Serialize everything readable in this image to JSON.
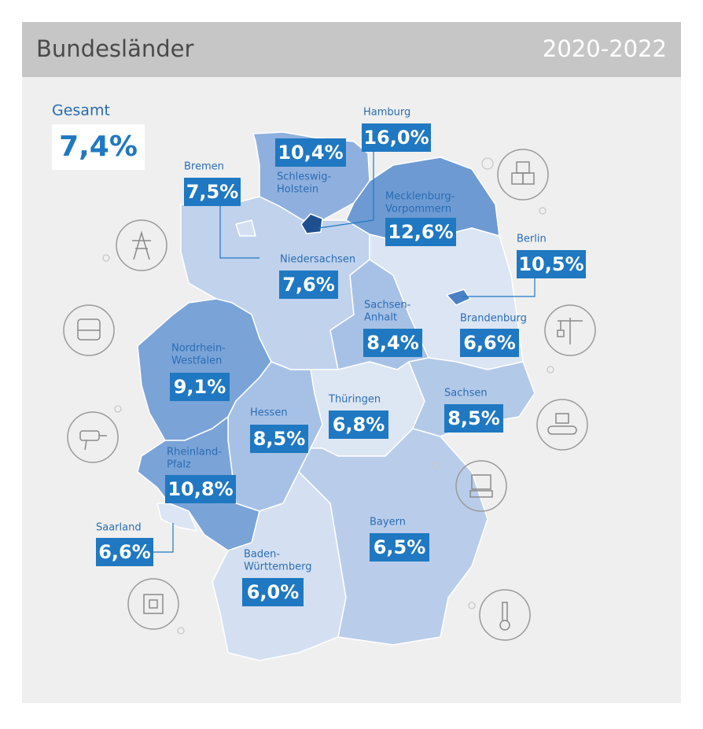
{
  "header": {
    "title": "Bundesländer",
    "period": "2020-2022"
  },
  "total": {
    "label": "Gesamt",
    "value": "7,4%"
  },
  "states": [
    {
      "name": [
        "Schleswig-",
        "Holstein"
      ],
      "value": "10,4%"
    },
    {
      "name": [
        "Hamburg"
      ],
      "value": "16,0%"
    },
    {
      "name": [
        "Bremen"
      ],
      "value": "7,5%"
    },
    {
      "name": [
        "Mecklenburg-",
        "Vorpommern"
      ],
      "value": "12,6%"
    },
    {
      "name": [
        "Berlin"
      ],
      "value": "10,5%"
    },
    {
      "name": [
        "Niedersachsen"
      ],
      "value": "7,6%"
    },
    {
      "name": [
        "Sachsen-",
        "Anhalt"
      ],
      "value": "8,4%"
    },
    {
      "name": [
        "Brandenburg"
      ],
      "value": "6,6%"
    },
    {
      "name": [
        "Nordrhein-",
        "Westfalen"
      ],
      "value": "9,1%"
    },
    {
      "name": [
        "Hessen"
      ],
      "value": "8,5%"
    },
    {
      "name": [
        "Thüringen"
      ],
      "value": "6,8%"
    },
    {
      "name": [
        "Sachsen"
      ],
      "value": "8,5%"
    },
    {
      "name": [
        "Rheinland-",
        "Pfalz"
      ],
      "value": "10,8%"
    },
    {
      "name": [
        "Saarland"
      ],
      "value": "6,6%"
    },
    {
      "name": [
        "Bayern"
      ],
      "value": "6,5%"
    },
    {
      "name": [
        "Baden-",
        "Württemberg"
      ],
      "value": "6,0%"
    }
  ]
}
